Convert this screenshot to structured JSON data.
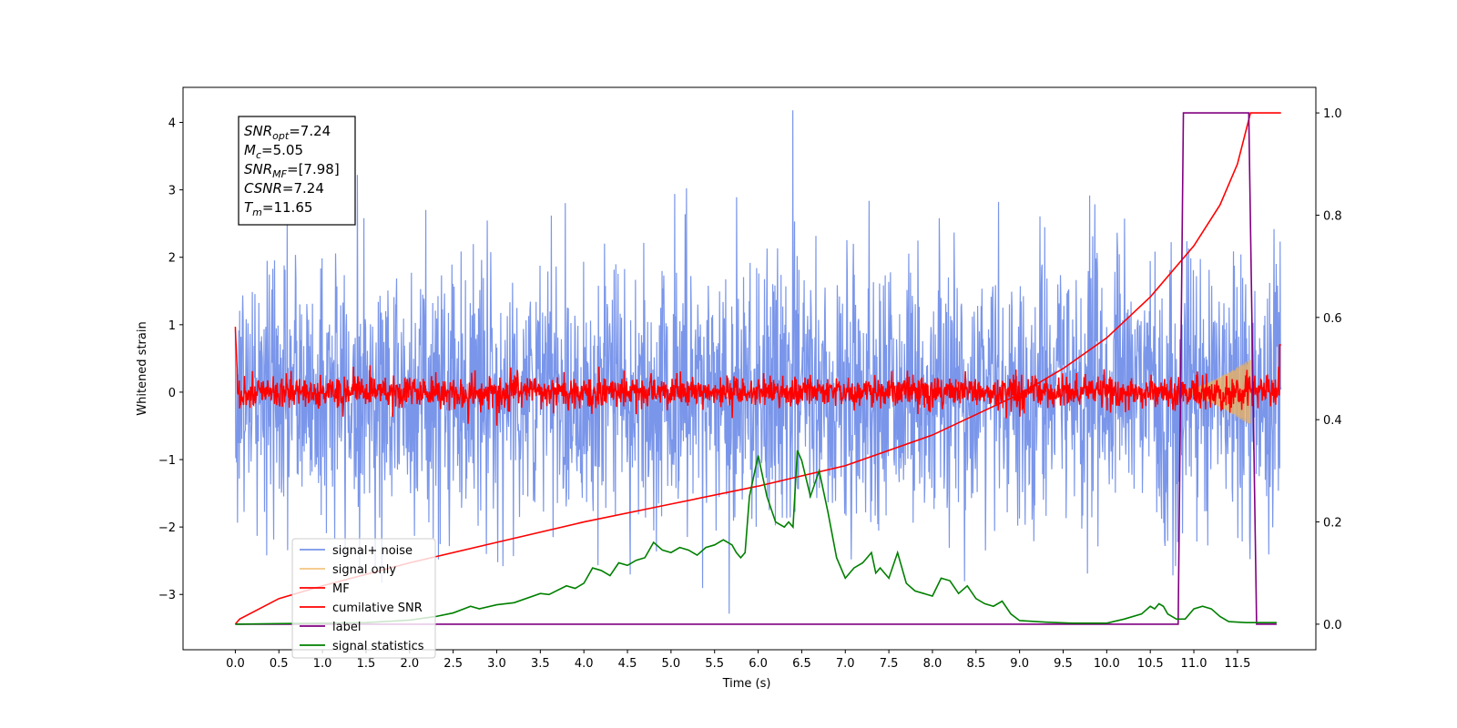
{
  "chart_data": {
    "type": "line",
    "xlabel": "Time (s)",
    "ylabel": "Whitened strain",
    "xlim": [
      -0.6,
      12.4
    ],
    "ylim": [
      -3.82,
      4.52
    ],
    "y2lim": [
      -0.05,
      1.05
    ],
    "xticks": [
      "0.0",
      "0.5",
      "1.0",
      "1.5",
      "2.0",
      "2.5",
      "3.0",
      "3.5",
      "4.0",
      "4.5",
      "5.0",
      "5.5",
      "6.0",
      "6.5",
      "7.0",
      "7.5",
      "8.0",
      "8.5",
      "9.0",
      "9.5",
      "10.0",
      "10.5",
      "11.0",
      "11.5"
    ],
    "yticks": [
      "−3",
      "−2",
      "−1",
      "0",
      "1",
      "2",
      "3",
      "4"
    ],
    "y2ticks": [
      "0.0",
      "0.2",
      "0.4",
      "0.6",
      "0.8",
      "1.0"
    ],
    "grid": false,
    "legend_placement": "lower-left",
    "info_box": {
      "lines": [
        {
          "base": "SNR",
          "sub": "opt",
          "value": "=7.24"
        },
        {
          "base": "M",
          "sub": "c",
          "value": "=5.05"
        },
        {
          "base": "SNR",
          "sub": "MF",
          "value": "=[7.98]"
        },
        {
          "base": "CSNR",
          "sub": "",
          "value": "=7.24"
        },
        {
          "base": "T",
          "sub": "m",
          "value": "=11.65"
        }
      ]
    },
    "series": [
      {
        "name": "signal+ noise",
        "color": "#4169e1",
        "axis": "left",
        "kind": "noise",
        "x_range": [
          0,
          12
        ],
        "sigma": 1.0,
        "peak": 4.18
      },
      {
        "name": "signal only",
        "color": "#f0b25a",
        "axis": "left",
        "kind": "chirp",
        "x_range": [
          10.8,
          11.65
        ],
        "amplitude_end": 0.5
      },
      {
        "name": "MF",
        "color": "#ff0000",
        "axis": "left",
        "kind": "noise",
        "x_range": [
          0,
          12
        ],
        "sigma": 0.12,
        "start_value": 0.97,
        "end_value": 0.7
      },
      {
        "name": "cumilative SNR",
        "color": "#ff0000",
        "axis": "right",
        "x": [
          0.0,
          0.05,
          0.5,
          1.0,
          2.0,
          3.0,
          4.0,
          5.0,
          6.0,
          7.0,
          8.0,
          9.0,
          9.5,
          10.0,
          10.5,
          11.0,
          11.3,
          11.5,
          11.65,
          11.66,
          12.0
        ],
        "y": [
          0.0,
          0.01,
          0.05,
          0.075,
          0.12,
          0.16,
          0.2,
          0.235,
          0.27,
          0.31,
          0.37,
          0.45,
          0.5,
          0.56,
          0.64,
          0.74,
          0.82,
          0.9,
          1.0,
          1.0,
          1.0
        ]
      },
      {
        "name": "label",
        "color": "#800080",
        "axis": "right",
        "x": [
          0.0,
          10.82,
          10.88,
          11.63,
          11.72,
          11.95
        ],
        "y": [
          0.0,
          0.0,
          1.0,
          1.0,
          0.0,
          0.0
        ]
      },
      {
        "name": "signal statistics",
        "color": "#008000",
        "axis": "right",
        "x": [
          0.0,
          0.5,
          1.0,
          1.5,
          2.0,
          2.3,
          2.5,
          2.7,
          2.8,
          3.0,
          3.2,
          3.5,
          3.6,
          3.8,
          3.9,
          4.0,
          4.1,
          4.2,
          4.3,
          4.4,
          4.5,
          4.6,
          4.7,
          4.8,
          4.9,
          5.0,
          5.1,
          5.2,
          5.3,
          5.4,
          5.5,
          5.6,
          5.7,
          5.75,
          5.8,
          5.85,
          5.9,
          6.0,
          6.1,
          6.2,
          6.3,
          6.35,
          6.4,
          6.45,
          6.5,
          6.6,
          6.7,
          6.75,
          6.8,
          6.9,
          7.0,
          7.1,
          7.2,
          7.3,
          7.35,
          7.4,
          7.5,
          7.6,
          7.7,
          7.8,
          7.9,
          8.0,
          8.1,
          8.2,
          8.3,
          8.4,
          8.5,
          8.6,
          8.7,
          8.8,
          8.9,
          9.0,
          9.3,
          9.6,
          10.0,
          10.2,
          10.4,
          10.5,
          10.55,
          10.6,
          10.65,
          10.7,
          10.8,
          10.9,
          11.0,
          11.1,
          11.2,
          11.3,
          11.4,
          11.6,
          11.95
        ],
        "y": [
          0.0,
          0.001,
          0.002,
          0.003,
          0.008,
          0.015,
          0.022,
          0.035,
          0.03,
          0.038,
          0.042,
          0.06,
          0.058,
          0.075,
          0.07,
          0.08,
          0.11,
          0.105,
          0.095,
          0.12,
          0.115,
          0.125,
          0.13,
          0.16,
          0.145,
          0.14,
          0.15,
          0.145,
          0.135,
          0.15,
          0.155,
          0.165,
          0.155,
          0.14,
          0.13,
          0.14,
          0.25,
          0.33,
          0.25,
          0.2,
          0.19,
          0.2,
          0.19,
          0.34,
          0.32,
          0.25,
          0.3,
          0.26,
          0.22,
          0.13,
          0.09,
          0.11,
          0.12,
          0.14,
          0.1,
          0.11,
          0.09,
          0.14,
          0.08,
          0.065,
          0.06,
          0.055,
          0.09,
          0.085,
          0.06,
          0.075,
          0.05,
          0.04,
          0.035,
          0.045,
          0.02,
          0.007,
          0.004,
          0.002,
          0.002,
          0.01,
          0.02,
          0.035,
          0.03,
          0.04,
          0.035,
          0.02,
          0.01,
          0.01,
          0.03,
          0.035,
          0.03,
          0.015,
          0.005,
          0.003,
          0.003
        ]
      }
    ]
  }
}
